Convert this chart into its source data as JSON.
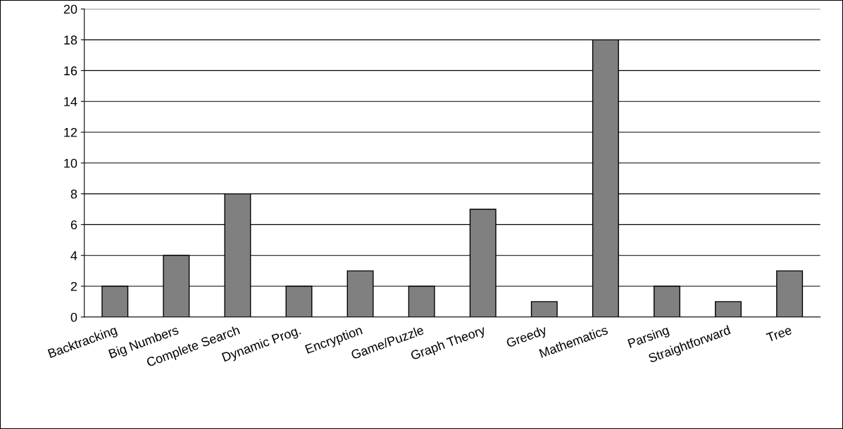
{
  "chart_data": {
    "type": "bar",
    "categories": [
      "Backtracking",
      "Big Numbers",
      "Complete Search",
      "Dynamic Prog.",
      "Encryption",
      "Game/Puzzle",
      "Graph Theory",
      "Greedy",
      "Mathematics",
      "Parsing",
      "Straightforward",
      "Tree"
    ],
    "values": [
      2,
      4,
      8,
      2,
      3,
      2,
      7,
      1,
      18,
      2,
      1,
      3
    ],
    "color": "#808080",
    "ylim": [
      0,
      20
    ],
    "yticks": [
      0,
      2,
      4,
      6,
      8,
      10,
      12,
      14,
      16,
      18,
      20
    ],
    "grid": "y",
    "legend": false
  }
}
